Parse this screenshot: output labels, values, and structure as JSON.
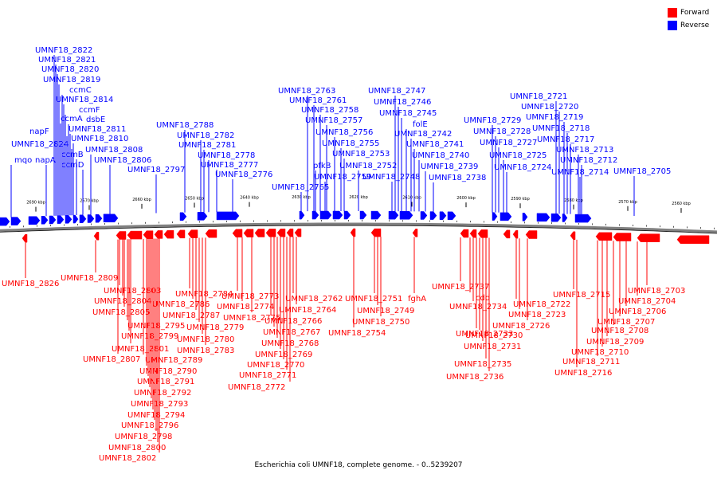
{
  "legend": {
    "forward": {
      "label": "Forward",
      "color": "#ff0000"
    },
    "reverse": {
      "label": "Reverse",
      "color": "#0000ff"
    }
  },
  "footer": "Escherichia coli UMNF18, complete genome. - 0..5239207",
  "colors": {
    "forward": "#ff0000",
    "reverse": "#0000ff",
    "backbone": "#808080",
    "tick": "#000000"
  },
  "scale": {
    "unit": "kbp",
    "ticks": [
      "2690 kbp",
      "2670 kbp",
      "2660 kbp",
      "2650 kbp",
      "2640 kbp",
      "2630 kbp",
      "2620 kbp",
      "2610 kbp",
      "2600 kbp",
      "2590 kbp",
      "2580 kbp",
      "2570 kbp",
      "2560 kbp"
    ]
  },
  "reverse_labels": [
    "UMNF18_2822",
    "UMNF18_2821",
    "UMNF18_2820",
    "UMNF18_2819",
    "ccmC",
    "UMNF18_2814",
    "ccmF",
    "ccmA",
    "dsbE",
    "napF",
    "UMNF18_2811",
    "UMNF18_2810",
    "UMNF18_2824",
    "ccmB",
    "UMNF18_2808",
    "mqo",
    "napA",
    "ccmD",
    "UMNF18_2806",
    "UMNF18_2797",
    "UMNF18_2788",
    "UMNF18_2782",
    "UMNF18_2781",
    "UMNF18_2778",
    "UMNF18_2777",
    "UMNF18_2776",
    "UMNF18_2763",
    "UMNF18_2761",
    "UMNF18_2758",
    "UMNF18_2757",
    "UMNF18_2756",
    "UMNF18_2755",
    "UMNF18_2753",
    "pfkB",
    "UMNF18_2759",
    "UMNF18_2752",
    "UMNF18_2765",
    "UMNF18_2747",
    "UMNF18_2746",
    "UMNF18_2745",
    "folE",
    "UMNF18_2742",
    "UMNF18_2741",
    "UMNF18_2740",
    "UMNF18_2739",
    "UMNF18_2748",
    "UMNF18_2738",
    "UMNF18_2729",
    "UMNF18_2728",
    "UMNF18_2727",
    "UMNF18_2725",
    "UMNF18_2724",
    "UMNF18_2721",
    "UMNF18_2720",
    "UMNF18_2719",
    "UMNF18_2718",
    "UMNF18_2717",
    "UMNF18_2713",
    "UMNF18_2712",
    "UMNF18_2714",
    "UMNF18_2705"
  ],
  "forward_labels": [
    "UMNF18_2826",
    "UMNF18_2809",
    "UMNF18_2803",
    "UMNF18_2804",
    "UMNF18_2805",
    "UMNF18_2795",
    "UMNF18_2799",
    "UMNF18_2801",
    "UMNF18_2807",
    "UMNF18_2789",
    "UMNF18_2790",
    "UMNF18_2791",
    "UMNF18_2792",
    "UMNF18_2793",
    "UMNF18_2794",
    "UMNF18_2796",
    "UMNF18_2798",
    "UMNF18_2800",
    "UMNF18_2802",
    "UMNF18_2784",
    "UMNF18_2786",
    "UMNF18_2787",
    "UMNF18_2779",
    "UMNF18_2780",
    "UMNF18_2783",
    "UMNF18_2773",
    "UMNF18_2774",
    "UMNF18_2775",
    "UMNF18_2766",
    "UMNF18_2767",
    "UMNF18_2768",
    "UMNF18_2769",
    "UMNF18_2770",
    "UMNF18_2771",
    "UMNF18_2772",
    "UMNF18_2762",
    "UMNF18_2764",
    "UMNF18_2754",
    "UMNF18_2751",
    "UMNF18_2749",
    "UMNF18_2750",
    "fghA",
    "UMNF18_2737",
    "cdd",
    "UMNF18_2734",
    "UMNF18_2733",
    "UMNF18_2730",
    "UMNF18_2731",
    "UMNF18_2735",
    "UMNF18_2736",
    "UMNF18_2722",
    "UMNF18_2723",
    "UMNF18_2726",
    "UMNF18_2715",
    "UMNF18_2716",
    "UMNF18_2711",
    "UMNF18_2710",
    "UMNF18_2709",
    "UMNF18_2708",
    "UMNF18_2707",
    "UMNF18_2706",
    "UMNF18_2704",
    "UMNF18_2703"
  ]
}
